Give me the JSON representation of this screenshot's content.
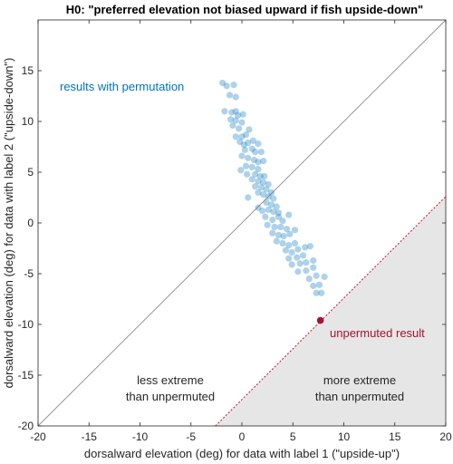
{
  "chart_data": {
    "type": "scatter",
    "title": "H0: \"preferred elevation not biased upward if fish upside-down\"",
    "xlabel": "dorsalward elevation (deg) for data with label 1 (\"upside-up\")",
    "ylabel": "dorsalward elevation (deg) for data with label 2 (\"upside-down\")",
    "xlim": [
      -20,
      20
    ],
    "ylim": [
      -20,
      20
    ],
    "xticks": [
      "-20",
      "-15",
      "-10",
      "-5",
      "0",
      "5",
      "10",
      "15",
      "20"
    ],
    "yticks": [
      "-20",
      "-15",
      "-10",
      "-5",
      "0",
      "5",
      "10",
      "15"
    ],
    "grid": false,
    "colors": {
      "permutation": "#0072BD",
      "unpermuted": "#A2142F",
      "identity_line": "#808080",
      "threshold_line": "#C8102E",
      "region_fill": "#E6E6E6"
    },
    "identity_line": {
      "x": [
        -20,
        20
      ],
      "y": [
        -20,
        20
      ]
    },
    "threshold_line": {
      "x": [
        -2.6,
        20
      ],
      "y": [
        -20,
        2.6
      ]
    },
    "unpermuted_point": {
      "x": 7.7,
      "y": -9.6
    },
    "permutation_points": [
      [
        -1.9,
        13.8
      ],
      [
        -1.5,
        13.5
      ],
      [
        -0.8,
        13.6
      ],
      [
        -1.2,
        12.6
      ],
      [
        -0.6,
        12.4
      ],
      [
        -1.7,
        11.0
      ],
      [
        -1.0,
        10.9
      ],
      [
        -0.6,
        11.0
      ],
      [
        -0.4,
        10.6
      ],
      [
        -1.1,
        10.2
      ],
      [
        -0.6,
        10.1
      ],
      [
        0.1,
        10.7
      ],
      [
        -0.9,
        9.6
      ],
      [
        0.0,
        9.9
      ],
      [
        -0.3,
        9.3
      ],
      [
        -0.6,
        8.5
      ],
      [
        0.0,
        8.5
      ],
      [
        0.4,
        8.7
      ],
      [
        0.7,
        9.2
      ],
      [
        -0.2,
        8.0
      ],
      [
        0.2,
        7.7
      ],
      [
        0.6,
        7.9
      ],
      [
        1.1,
        8.1
      ],
      [
        1.6,
        7.8
      ],
      [
        0.3,
        7.2
      ],
      [
        1.0,
        7.3
      ],
      [
        1.3,
        7.0
      ],
      [
        1.9,
        7.0
      ],
      [
        0.0,
        6.6
      ],
      [
        0.6,
        6.4
      ],
      [
        1.2,
        6.2
      ],
      [
        1.6,
        6.0
      ],
      [
        2.1,
        6.1
      ],
      [
        0.4,
        5.6
      ],
      [
        1.0,
        5.5
      ],
      [
        1.6,
        5.3
      ],
      [
        -0.1,
        5.2
      ],
      [
        0.5,
        4.8
      ],
      [
        1.3,
        4.8
      ],
      [
        1.8,
        4.6
      ],
      [
        2.2,
        4.6
      ],
      [
        1.0,
        4.3
      ],
      [
        1.6,
        4.1
      ],
      [
        2.1,
        4.0
      ],
      [
        2.6,
        3.8
      ],
      [
        1.3,
        3.6
      ],
      [
        1.9,
        3.5
      ],
      [
        2.4,
        3.3
      ],
      [
        2.9,
        3.0
      ],
      [
        1.6,
        3.0
      ],
      [
        2.1,
        2.8
      ],
      [
        2.6,
        2.6
      ],
      [
        3.1,
        2.4
      ],
      [
        0.6,
        2.5
      ],
      [
        2.4,
        2.0
      ],
      [
        2.9,
        1.8
      ],
      [
        3.4,
        1.6
      ],
      [
        1.6,
        1.5
      ],
      [
        2.6,
        1.3
      ],
      [
        3.1,
        1.1
      ],
      [
        3.6,
        1.0
      ],
      [
        2.0,
        1.2
      ],
      [
        2.3,
        0.6
      ],
      [
        3.0,
        0.3
      ],
      [
        3.6,
        0.6
      ],
      [
        4.0,
        0.2
      ],
      [
        4.6,
        0.8
      ],
      [
        2.5,
        -0.2
      ],
      [
        3.2,
        -0.4
      ],
      [
        3.8,
        -0.4
      ],
      [
        4.4,
        -0.6
      ],
      [
        3.0,
        -1.0
      ],
      [
        3.6,
        -1.2
      ],
      [
        4.1,
        -1.3
      ],
      [
        4.7,
        -1.1
      ],
      [
        5.2,
        -0.7
      ],
      [
        3.4,
        -1.8
      ],
      [
        4.0,
        -2.0
      ],
      [
        4.6,
        -2.2
      ],
      [
        5.2,
        -2.0
      ],
      [
        4.3,
        -2.7
      ],
      [
        4.9,
        -2.9
      ],
      [
        5.5,
        -2.6
      ],
      [
        6.2,
        -2.4
      ],
      [
        4.6,
        -3.5
      ],
      [
        5.4,
        -3.4
      ],
      [
        6.0,
        -3.2
      ],
      [
        6.7,
        -2.3
      ],
      [
        4.9,
        -4.1
      ],
      [
        5.7,
        -4.0
      ],
      [
        6.3,
        -3.9
      ],
      [
        7.0,
        -3.7
      ],
      [
        5.5,
        -4.8
      ],
      [
        6.3,
        -4.7
      ],
      [
        7.0,
        -4.4
      ],
      [
        6.6,
        -5.5
      ],
      [
        7.3,
        -5.2
      ],
      [
        8.1,
        -5.3
      ],
      [
        7.0,
        -6.2
      ],
      [
        7.6,
        -6.1
      ],
      [
        7.3,
        -6.9
      ],
      [
        7.8,
        -6.9
      ]
    ],
    "annotations": {
      "results_with_permutation": "results with permutation",
      "unpermuted_result": "unpermuted result",
      "less_extreme_line1": "less extreme",
      "less_extreme_line2": "than unpermuted",
      "more_extreme_line1": "more extreme",
      "more_extreme_line2": "than unpermuted"
    }
  }
}
